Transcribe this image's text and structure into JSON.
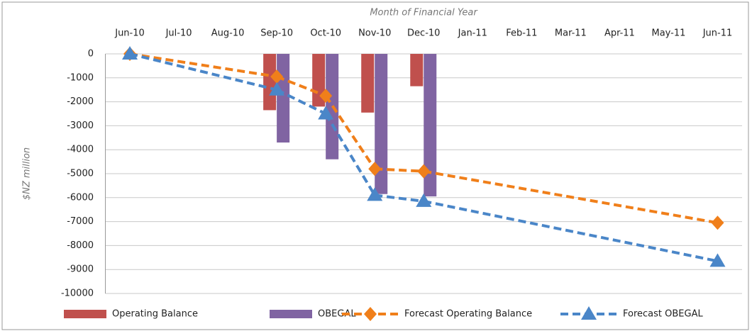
{
  "chart_data": {
    "type": "combo",
    "x_label": "Month of Financial Year",
    "y_label": "$NZ million",
    "categories": [
      "Jun-10",
      "Jul-10",
      "Aug-10",
      "Sep-10",
      "Oct-10",
      "Nov-10",
      "Dec-10",
      "Jan-11",
      "Feb-11",
      "Mar-11",
      "Apr-11",
      "May-11",
      "Jun-11"
    ],
    "series": [
      {
        "name": "Operating Balance",
        "type": "bar",
        "color": "#c0504d",
        "values": [
          null,
          null,
          null,
          -2350,
          -2200,
          -2450,
          -1350,
          null,
          null,
          null,
          null,
          null,
          null
        ]
      },
      {
        "name": "OBEGAL",
        "type": "bar",
        "color": "#8064a2",
        "values": [
          null,
          null,
          null,
          -3700,
          -4400,
          -5850,
          -5950,
          null,
          null,
          null,
          null,
          null,
          null
        ]
      },
      {
        "name": "Forecast Operating Balance",
        "type": "line",
        "marker": "diamond",
        "color": "#f07f1a",
        "values": [
          0,
          null,
          null,
          -950,
          -1750,
          -4800,
          -4900,
          null,
          null,
          null,
          null,
          null,
          -7050
        ]
      },
      {
        "name": "Forecast OBEGAL",
        "type": "line",
        "marker": "triangle",
        "color": "#4a86c8",
        "values": [
          0,
          null,
          null,
          -1500,
          -2500,
          -5900,
          -6150,
          null,
          null,
          null,
          null,
          null,
          -8650
        ]
      }
    ],
    "ylim": [
      -10000,
      0
    ],
    "yticks": [
      0,
      -1000,
      -2000,
      -3000,
      -4000,
      -5000,
      -6000,
      -7000,
      -8000,
      -9000,
      -10000
    ],
    "grid": true,
    "legend": "bottom"
  }
}
